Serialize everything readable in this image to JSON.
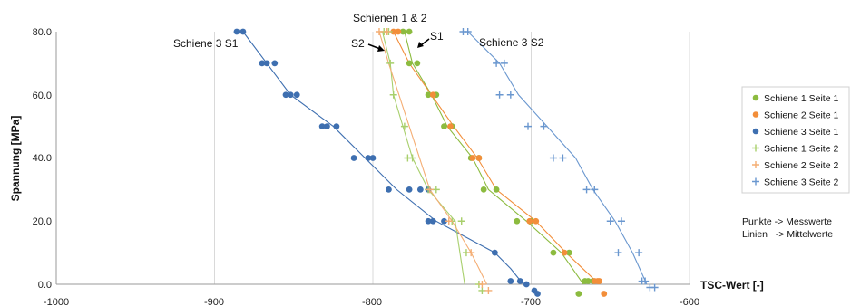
{
  "chart_data": {
    "type": "scatter",
    "xlabel": "TSC-Wert [-]",
    "ylabel": "Spannung [MPa]",
    "xlim": [
      -1000,
      -600
    ],
    "ylim": [
      0,
      80
    ],
    "x_ticks": [
      "-1000",
      "-900",
      "-800",
      "-700",
      "-600"
    ],
    "y_ticks": [
      "0.0",
      "20.0",
      "40.0",
      "60.0",
      "80.0"
    ],
    "grid": "vertical",
    "legend_position": "right",
    "annotations": [
      {
        "text": "Schienen 1 & 2",
        "id": "schienen-1-2"
      },
      {
        "text": "S1",
        "id": "s1"
      },
      {
        "text": "S2",
        "id": "s2"
      },
      {
        "text": "Schiene 3 S1",
        "id": "schiene3-s1"
      },
      {
        "text": "Schiene 3 S2",
        "id": "schiene3-s2"
      }
    ],
    "note_lines": [
      "Punkte -> Messwerte",
      "Linien   -> Mittelwerte"
    ],
    "series": [
      {
        "name": "Schiene 1 Seite 1",
        "color": "#8cbb3f",
        "marker": "dot",
        "mean_line": [
          [
            -667,
            0
          ],
          [
            -681,
            10
          ],
          [
            -703,
            20
          ],
          [
            -727,
            30
          ],
          [
            -737,
            40
          ],
          [
            -753,
            50
          ],
          [
            -763,
            60
          ],
          [
            -775,
            70
          ],
          [
            -780,
            80
          ]
        ],
        "points": [
          [
            -670,
            -3
          ],
          [
            -666,
            1
          ],
          [
            -664,
            1
          ],
          [
            -661,
            1
          ],
          [
            -686,
            10
          ],
          [
            -676,
            10
          ],
          [
            -709,
            20
          ],
          [
            -700,
            20
          ],
          [
            -730,
            30
          ],
          [
            -722,
            30
          ],
          [
            -738,
            40
          ],
          [
            -733,
            40
          ],
          [
            -755,
            50
          ],
          [
            -750,
            50
          ],
          [
            -765,
            60
          ],
          [
            -760,
            60
          ],
          [
            -777,
            70
          ],
          [
            -772,
            70
          ],
          [
            -781,
            80
          ],
          [
            -777,
            80
          ]
        ]
      },
      {
        "name": "Schiene 2 Seite 1",
        "color": "#f28e3a",
        "marker": "dot",
        "mean_line": [
          [
            -657,
            0
          ],
          [
            -678,
            10
          ],
          [
            -697,
            20
          ],
          [
            -722,
            30
          ],
          [
            -734,
            40
          ],
          [
            -749,
            50
          ],
          [
            -763,
            60
          ],
          [
            -777,
            70
          ],
          [
            -787,
            80
          ]
        ],
        "points": [
          [
            -654,
            -3
          ],
          [
            -657,
            1
          ],
          [
            -660,
            1
          ],
          [
            -658,
            1
          ],
          [
            -679,
            10
          ],
          [
            -697,
            20
          ],
          [
            -701,
            20
          ],
          [
            -737,
            40
          ],
          [
            -733,
            40
          ],
          [
            -751,
            50
          ],
          [
            -762,
            60
          ],
          [
            -787,
            80
          ],
          [
            -784,
            80
          ]
        ]
      },
      {
        "name": "Schiene 3 Seite 1",
        "color": "#3e6fb0",
        "marker": "dot",
        "mean_line": [
          [
            -705,
            0
          ],
          [
            -713,
            5
          ],
          [
            -723,
            10
          ],
          [
            -760,
            20
          ],
          [
            -785,
            30
          ],
          [
            -805,
            40
          ],
          [
            -825,
            50
          ],
          [
            -852,
            60
          ],
          [
            -867,
            70
          ],
          [
            -882,
            80
          ]
        ],
        "points": [
          [
            -696,
            -3
          ],
          [
            -698,
            -2
          ],
          [
            -703,
            0
          ],
          [
            -713,
            1
          ],
          [
            -707,
            1
          ],
          [
            -723,
            10
          ],
          [
            -755,
            20
          ],
          [
            -765,
            20
          ],
          [
            -762,
            20
          ],
          [
            -765,
            30
          ],
          [
            -770,
            30
          ],
          [
            -777,
            30
          ],
          [
            -790,
            30
          ],
          [
            -803,
            40
          ],
          [
            -800,
            40
          ],
          [
            -812,
            40
          ],
          [
            -823,
            50
          ],
          [
            -829,
            50
          ],
          [
            -832,
            50
          ],
          [
            -848,
            60
          ],
          [
            -852,
            60
          ],
          [
            -855,
            60
          ],
          [
            -862,
            70
          ],
          [
            -867,
            70
          ],
          [
            -870,
            70
          ],
          [
            -882,
            80
          ],
          [
            -886,
            80
          ]
        ]
      },
      {
        "name": "Schiene 1 Seite 2",
        "color": "#a8cf6c",
        "marker": "plus",
        "mean_line": [
          [
            -742,
            0
          ],
          [
            -748,
            20
          ],
          [
            -765,
            30
          ],
          [
            -775,
            40
          ],
          [
            -787,
            60
          ],
          [
            -789,
            70
          ],
          [
            -794,
            80
          ]
        ],
        "points": [
          [
            -731,
            -2
          ],
          [
            -733,
            0
          ],
          [
            -741,
            10
          ],
          [
            -744,
            20
          ],
          [
            -750,
            20
          ],
          [
            -760,
            30
          ],
          [
            -765,
            30
          ],
          [
            -775,
            40
          ],
          [
            -778,
            40
          ],
          [
            -780,
            50
          ],
          [
            -787,
            60
          ],
          [
            -789,
            70
          ],
          [
            -793,
            80
          ],
          [
            -790,
            80
          ]
        ]
      },
      {
        "name": "Schiene 2 Seite 2",
        "color": "#f4ad73",
        "marker": "plus",
        "mean_line": [
          [
            -728,
            0
          ],
          [
            -738,
            10
          ],
          [
            -750,
            20
          ],
          [
            -764,
            30
          ],
          [
            -790,
            70
          ],
          [
            -796,
            80
          ]
        ],
        "points": [
          [
            -727,
            -2
          ],
          [
            -731,
            0
          ],
          [
            -738,
            10
          ],
          [
            -752,
            20
          ],
          [
            -764,
            30
          ],
          [
            -791,
            80
          ],
          [
            -796,
            80
          ]
        ]
      },
      {
        "name": "Schiene 3 Seite 2",
        "color": "#6a97cf",
        "marker": "plus",
        "mean_line": [
          [
            -627,
            0
          ],
          [
            -636,
            10
          ],
          [
            -647,
            20
          ],
          [
            -661,
            30
          ],
          [
            -672,
            40
          ],
          [
            -690,
            50
          ],
          [
            -708,
            60
          ],
          [
            -720,
            70
          ],
          [
            -740,
            80
          ]
        ],
        "points": [
          [
            -625,
            -1
          ],
          [
            -622,
            -1
          ],
          [
            -628,
            1
          ],
          [
            -630,
            1
          ],
          [
            -645,
            10
          ],
          [
            -632,
            10
          ],
          [
            -650,
            20
          ],
          [
            -643,
            20
          ],
          [
            -665,
            30
          ],
          [
            -660,
            30
          ],
          [
            -686,
            40
          ],
          [
            -680,
            40
          ],
          [
            -702,
            50
          ],
          [
            -692,
            50
          ],
          [
            -713,
            60
          ],
          [
            -720,
            60
          ],
          [
            -722,
            70
          ],
          [
            -717,
            70
          ],
          [
            -740,
            80
          ],
          [
            -743,
            80
          ]
        ]
      }
    ]
  }
}
